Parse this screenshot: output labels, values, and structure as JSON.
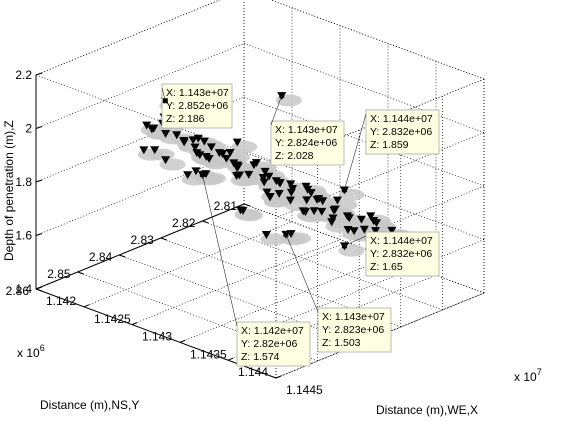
{
  "chart_data": {
    "type": "scatter",
    "view": "3d",
    "xlabel": "Distance (m),WE,X",
    "ylabel": "Distance (m),NS,Y",
    "zlabel": "Depth of penetration (m),Z",
    "x_exponent_label": "x 10",
    "x_exponent_power": "7",
    "y_exponent_label": "x 10",
    "y_exponent_power": "6",
    "xlim": [
      11420000,
      11445000
    ],
    "ylim": [
      2810000,
      2860000
    ],
    "zlim": [
      1.4,
      2.2
    ],
    "x_ticks": [
      "1.142",
      "1.1425",
      "1.143",
      "1.1435",
      "1.144",
      "1.1445"
    ],
    "y_ticks": [
      "2.81",
      "2.82",
      "2.83",
      "2.84",
      "2.85",
      "2.86"
    ],
    "z_ticks": [
      "1.4",
      "1.6",
      "1.8",
      "2",
      "2.2"
    ],
    "grid": true,
    "marker": "down-triangle",
    "marker_color": "#000000",
    "shadow_color": "#c8c8c8",
    "datatips": [
      {
        "x_text": "X: 1.143e+07",
        "y_text": "Y: 2.852e+06",
        "z_text": "Z: 2.186"
      },
      {
        "x_text": "X: 1.143e+07",
        "y_text": "Y: 2.824e+06",
        "z_text": "Z: 2.028"
      },
      {
        "x_text": "X: 1.144e+07",
        "y_text": "Y: 2.832e+06",
        "z_text": "Z: 1.859"
      },
      {
        "x_text": "X: 1.144e+07",
        "y_text": "Y: 2.832e+06",
        "z_text": "Z: 1.65"
      },
      {
        "x_text": "X: 1.143e+07",
        "y_text": "Y: 2.823e+06",
        "z_text": "Z: 1.503"
      },
      {
        "x_text": "X: 1.142e+07",
        "y_text": "Y: 2.82e+06",
        "z_text": "Z: 1.574"
      }
    ],
    "points": [
      [
        11430000,
        2852000,
        2.186
      ],
      [
        11430000,
        2824000,
        2.028
      ],
      [
        11440000,
        2832000,
        1.859
      ],
      [
        11440000,
        2832000,
        1.65
      ],
      [
        11430000,
        2823000,
        1.503
      ],
      [
        11420000,
        2820000,
        1.574
      ],
      [
        11427000,
        2845000,
        1.98
      ],
      [
        11429000,
        2843000,
        1.97
      ],
      [
        11431000,
        2846000,
        1.96
      ],
      [
        11432000,
        2841000,
        1.95
      ],
      [
        11434000,
        2844000,
        1.94
      ],
      [
        11426000,
        2840000,
        1.93
      ],
      [
        11428000,
        2838000,
        1.92
      ],
      [
        11430000,
        2839000,
        1.91
      ],
      [
        11433000,
        2837000,
        1.9
      ],
      [
        11435000,
        2840000,
        1.89
      ],
      [
        11437000,
        2838000,
        1.88
      ],
      [
        11425000,
        2836000,
        1.87
      ],
      [
        11427000,
        2834000,
        1.86
      ],
      [
        11429000,
        2835000,
        1.85
      ],
      [
        11431000,
        2833000,
        1.84
      ],
      [
        11433000,
        2834000,
        1.83
      ],
      [
        11436000,
        2832000,
        1.82
      ],
      [
        11438000,
        2834000,
        1.81
      ],
      [
        11424000,
        2831000,
        1.8
      ],
      [
        11426000,
        2829000,
        1.79
      ],
      [
        11428000,
        2830000,
        1.78
      ],
      [
        11430000,
        2828000,
        1.77
      ],
      [
        11432000,
        2829000,
        1.76
      ],
      [
        11434000,
        2827000,
        1.75
      ],
      [
        11436000,
        2828000,
        1.74
      ],
      [
        11439000,
        2829000,
        1.73
      ],
      [
        11423000,
        2826000,
        1.72
      ],
      [
        11425000,
        2824000,
        1.71
      ],
      [
        11427000,
        2825000,
        1.7
      ],
      [
        11429000,
        2823000,
        1.69
      ],
      [
        11431000,
        2824000,
        1.68
      ],
      [
        11433000,
        2822000,
        1.67
      ],
      [
        11435000,
        2823000,
        1.66
      ],
      [
        11437000,
        2821000,
        1.64
      ],
      [
        11424000,
        2821000,
        1.63
      ],
      [
        11426000,
        2819000,
        1.62
      ],
      [
        11428000,
        2820000,
        1.61
      ],
      [
        11430000,
        2818000,
        1.6
      ],
      [
        11432000,
        2819000,
        1.59
      ],
      [
        11434000,
        2817000,
        1.58
      ],
      [
        11436000,
        2818000,
        1.57
      ],
      [
        11425000,
        2816000,
        1.55
      ],
      [
        11427000,
        2815000,
        1.54
      ],
      [
        11429000,
        2816000,
        1.53
      ],
      [
        11431000,
        2814000,
        1.52
      ],
      [
        11433000,
        2815000,
        1.51
      ],
      [
        11428000,
        2848000,
        2.05
      ],
      [
        11432000,
        2849000,
        2.0
      ],
      [
        11426000,
        2846000,
        1.99
      ],
      [
        11435000,
        2846000,
        1.97
      ],
      [
        11438000,
        2843000,
        1.93
      ],
      [
        11440000,
        2840000,
        1.9
      ],
      [
        11441000,
        2836000,
        1.86
      ],
      [
        11422000,
        2838000,
        1.9
      ],
      [
        11421000,
        2834000,
        1.85
      ],
      [
        11422000,
        2829000,
        1.78
      ],
      [
        11440000,
        2825000,
        1.7
      ],
      [
        11441000,
        2828000,
        1.75
      ],
      [
        11439000,
        2822000,
        1.66
      ],
      [
        11422000,
        2823000,
        1.68
      ],
      [
        11423000,
        2818000,
        1.6
      ],
      [
        11438000,
        2816000,
        1.58
      ],
      [
        11424000,
        2813000,
        1.5
      ],
      [
        11435000,
        2813000,
        1.52
      ],
      [
        11430000,
        2812000,
        1.48
      ],
      [
        11429000,
        2850000,
        2.1
      ],
      [
        11433000,
        2851000,
        2.08
      ],
      [
        11431000,
        2837000,
        1.95
      ],
      [
        11428000,
        2842000,
        1.82
      ],
      [
        11434000,
        2836000,
        1.78
      ],
      [
        11426000,
        2833000,
        1.74
      ],
      [
        11432000,
        2826000,
        1.72
      ],
      [
        11436000,
        2825000,
        1.69
      ],
      [
        11429000,
        2831000,
        1.63
      ],
      [
        11427000,
        2827000,
        1.58
      ],
      [
        11431000,
        2830000,
        1.56
      ],
      [
        11434000,
        2831000,
        1.61
      ],
      [
        11437000,
        2835000,
        1.76
      ],
      [
        11425000,
        2843000,
        1.88
      ],
      [
        11423000,
        2841000,
        1.84
      ],
      [
        11439000,
        2837000,
        1.8
      ],
      [
        11441000,
        2832000,
        1.72
      ],
      [
        11420500,
        2830000,
        1.7
      ],
      [
        11421500,
        2825000,
        1.64
      ]
    ]
  }
}
